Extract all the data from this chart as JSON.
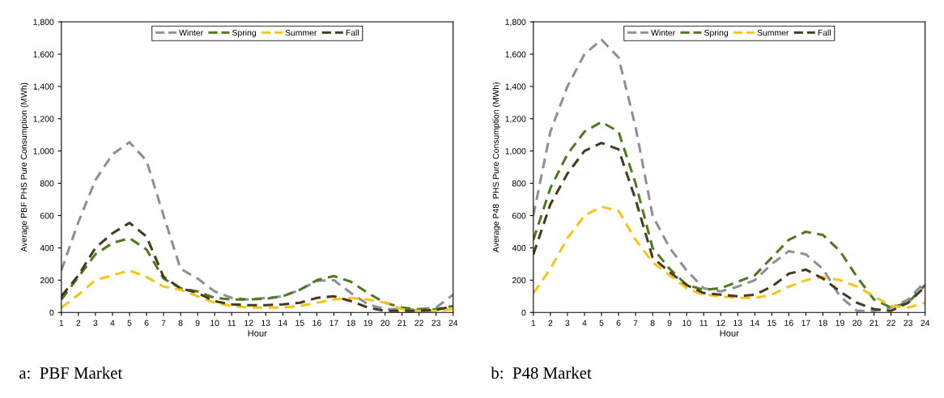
{
  "chart_data": [
    {
      "type": "line",
      "xlabel": "Hour",
      "ylabel": "Average PBF PHS Pure Consumption (MWh)",
      "annotations": [
        "a:  PBF Market"
      ],
      "x": [
        1,
        2,
        3,
        4,
        5,
        6,
        7,
        8,
        9,
        10,
        11,
        12,
        13,
        14,
        15,
        16,
        17,
        18,
        19,
        20,
        21,
        22,
        23,
        24
      ],
      "xlim": [
        1,
        24
      ],
      "xticks": [
        1,
        2,
        3,
        4,
        5,
        6,
        7,
        8,
        9,
        10,
        11,
        12,
        13,
        14,
        15,
        16,
        17,
        18,
        19,
        20,
        21,
        22,
        23,
        24
      ],
      "ylim": [
        0,
        1800
      ],
      "yticks": [
        {
          "value": 0,
          "label": "0"
        },
        {
          "value": 200,
          "label": "200"
        },
        {
          "value": 400,
          "label": "400"
        },
        {
          "value": 600,
          "label": "600"
        },
        {
          "value": 800,
          "label": "800"
        },
        {
          "value": 1000,
          "label": "1,000"
        },
        {
          "value": 1200,
          "label": "1,200"
        },
        {
          "value": 1400,
          "label": "1,400"
        },
        {
          "value": 1600,
          "label": "1,600"
        },
        {
          "value": 1800,
          "label": "1,800"
        }
      ],
      "grid": false,
      "legend": "top",
      "line_style": "dashed",
      "marker": "none",
      "series": [
        {
          "name": "Winter",
          "color": "#8e8e9e",
          "values": [
            260,
            560,
            820,
            980,
            1055,
            940,
            600,
            270,
            210,
            130,
            90,
            80,
            90,
            100,
            140,
            195,
            200,
            120,
            50,
            20,
            20,
            20,
            30,
            110
          ]
        },
        {
          "name": "Spring",
          "color": "#4f7a1f",
          "values": [
            80,
            220,
            360,
            430,
            460,
            390,
            210,
            150,
            130,
            90,
            80,
            80,
            85,
            100,
            140,
            200,
            225,
            190,
            120,
            60,
            30,
            20,
            20,
            40
          ]
        },
        {
          "name": "Summer",
          "color": "#f5c518",
          "values": [
            30,
            110,
            200,
            230,
            260,
            220,
            160,
            140,
            100,
            60,
            40,
            30,
            30,
            30,
            40,
            60,
            80,
            90,
            80,
            60,
            20,
            10,
            10,
            20
          ]
        },
        {
          "name": "Fall",
          "color": "#4a3a20",
          "values": [
            100,
            230,
            400,
            490,
            555,
            470,
            220,
            150,
            120,
            70,
            50,
            45,
            45,
            50,
            60,
            90,
            100,
            70,
            30,
            10,
            10,
            10,
            15,
            40
          ]
        }
      ]
    },
    {
      "type": "line",
      "xlabel": "Hour",
      "ylabel": "Average P48  PHS Pure Consumption (MWh)",
      "annotations": [
        "b:  P48 Market"
      ],
      "x": [
        1,
        2,
        3,
        4,
        5,
        6,
        7,
        8,
        9,
        10,
        11,
        12,
        13,
        14,
        15,
        16,
        17,
        18,
        19,
        20,
        21,
        22,
        23,
        24
      ],
      "xlim": [
        1,
        24
      ],
      "xticks": [
        1,
        2,
        3,
        4,
        5,
        6,
        7,
        8,
        9,
        10,
        11,
        12,
        13,
        14,
        15,
        16,
        17,
        18,
        19,
        20,
        21,
        22,
        23,
        24
      ],
      "ylim": [
        0,
        1800
      ],
      "yticks": [
        {
          "value": 0,
          "label": "0"
        },
        {
          "value": 200,
          "label": "200"
        },
        {
          "value": 400,
          "label": "400"
        },
        {
          "value": 600,
          "label": "600"
        },
        {
          "value": 800,
          "label": "800"
        },
        {
          "value": 1000,
          "label": "1,000"
        },
        {
          "value": 1200,
          "label": "1,200"
        },
        {
          "value": 1400,
          "label": "1,400"
        },
        {
          "value": 1600,
          "label": "1,600"
        },
        {
          "value": 1800,
          "label": "1,800"
        }
      ],
      "grid": false,
      "legend": "top",
      "line_style": "dashed",
      "marker": "none",
      "series": [
        {
          "name": "Winter",
          "color": "#8e8e9e",
          "values": [
            600,
            1120,
            1400,
            1600,
            1690,
            1580,
            1150,
            600,
            400,
            260,
            150,
            130,
            160,
            200,
            300,
            380,
            360,
            270,
            100,
            10,
            10,
            30,
            80,
            190
          ]
        },
        {
          "name": "Spring",
          "color": "#4f7a1f",
          "values": [
            450,
            770,
            980,
            1120,
            1180,
            1120,
            800,
            400,
            270,
            170,
            140,
            150,
            190,
            230,
            340,
            450,
            500,
            480,
            380,
            220,
            80,
            30,
            60,
            170
          ]
        },
        {
          "name": "Summer",
          "color": "#f5c518",
          "values": [
            120,
            270,
            460,
            600,
            655,
            630,
            450,
            310,
            230,
            150,
            110,
            100,
            90,
            90,
            110,
            160,
            200,
            220,
            200,
            160,
            100,
            40,
            30,
            60
          ]
        },
        {
          "name": "Fall",
          "color": "#4a3a20",
          "values": [
            360,
            670,
            860,
            1000,
            1050,
            1010,
            700,
            340,
            250,
            170,
            120,
            110,
            100,
            110,
            160,
            240,
            265,
            210,
            130,
            60,
            20,
            10,
            60,
            160
          ]
        }
      ]
    }
  ]
}
